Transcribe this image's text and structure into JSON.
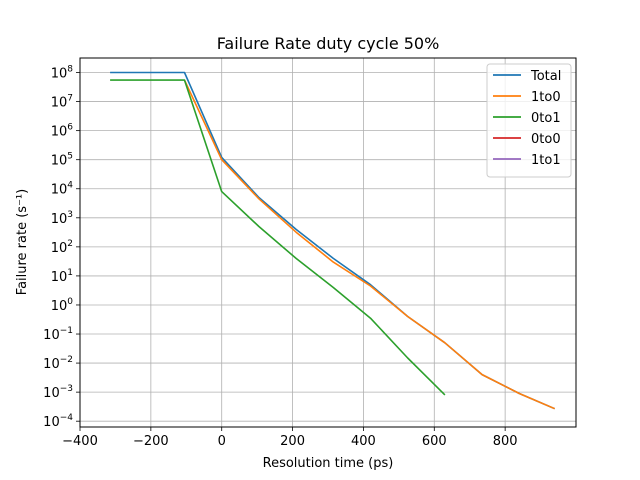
{
  "chart_data": {
    "type": "line",
    "title": "Failure Rate duty cycle 50%",
    "xlabel": "Resolution time (ps)",
    "ylabel": "Failure rate (s⁻¹)",
    "yscale": "log",
    "xlim": [
      -400,
      1000
    ],
    "ylim_log10": [
      -4.2,
      8.5
    ],
    "xticks": [
      -400,
      -200,
      0,
      200,
      400,
      600,
      800
    ],
    "xtick_labels": [
      "−400",
      "−200",
      "0",
      "200",
      "400",
      "600",
      "800"
    ],
    "ytick_exponents": [
      8,
      7,
      6,
      5,
      4,
      3,
      2,
      1,
      0,
      -1,
      -2,
      -3,
      -4
    ],
    "ytick_exp_labels": [
      "8",
      "7",
      "6",
      "5",
      "4",
      "3",
      "2",
      "1",
      "0",
      "−1",
      "−2",
      "−3",
      "−4"
    ],
    "ytick_base": "10",
    "grid": true,
    "legend_position": "top-right",
    "series": [
      {
        "name": "Total",
        "color": "#1f77b4",
        "x": [
          -315,
          -105,
          0,
          105,
          210,
          315,
          420,
          525,
          630,
          735,
          840,
          940
        ],
        "y": [
          100000000.0,
          100000000.0,
          120000.0,
          5000.0,
          400.0,
          40.0,
          5.0,
          0.4,
          0.05,
          0.004,
          0.0009,
          0.00027
        ]
      },
      {
        "name": "1to0",
        "color": "#ff7f0e",
        "x": [
          -105,
          0,
          105,
          210,
          315,
          420,
          525,
          630,
          735,
          840,
          940
        ],
        "y": [
          55000000.0,
          100000.0,
          4500.0,
          320.0,
          30.0,
          4.5,
          0.4,
          0.05,
          0.004,
          0.0009,
          0.00027
        ]
      },
      {
        "name": "0to1",
        "color": "#2ca02c",
        "x": [
          -315,
          -105,
          0,
          105,
          210,
          315,
          420,
          525,
          630
        ],
        "y": [
          55000000.0,
          55000000.0,
          8000.0,
          500.0,
          40.0,
          4.0,
          0.35,
          0.015,
          0.0008
        ]
      },
      {
        "name": "0to0",
        "color": "#d62728",
        "x": [],
        "y": []
      },
      {
        "name": "1to1",
        "color": "#9467bd",
        "x": [],
        "y": []
      }
    ]
  }
}
